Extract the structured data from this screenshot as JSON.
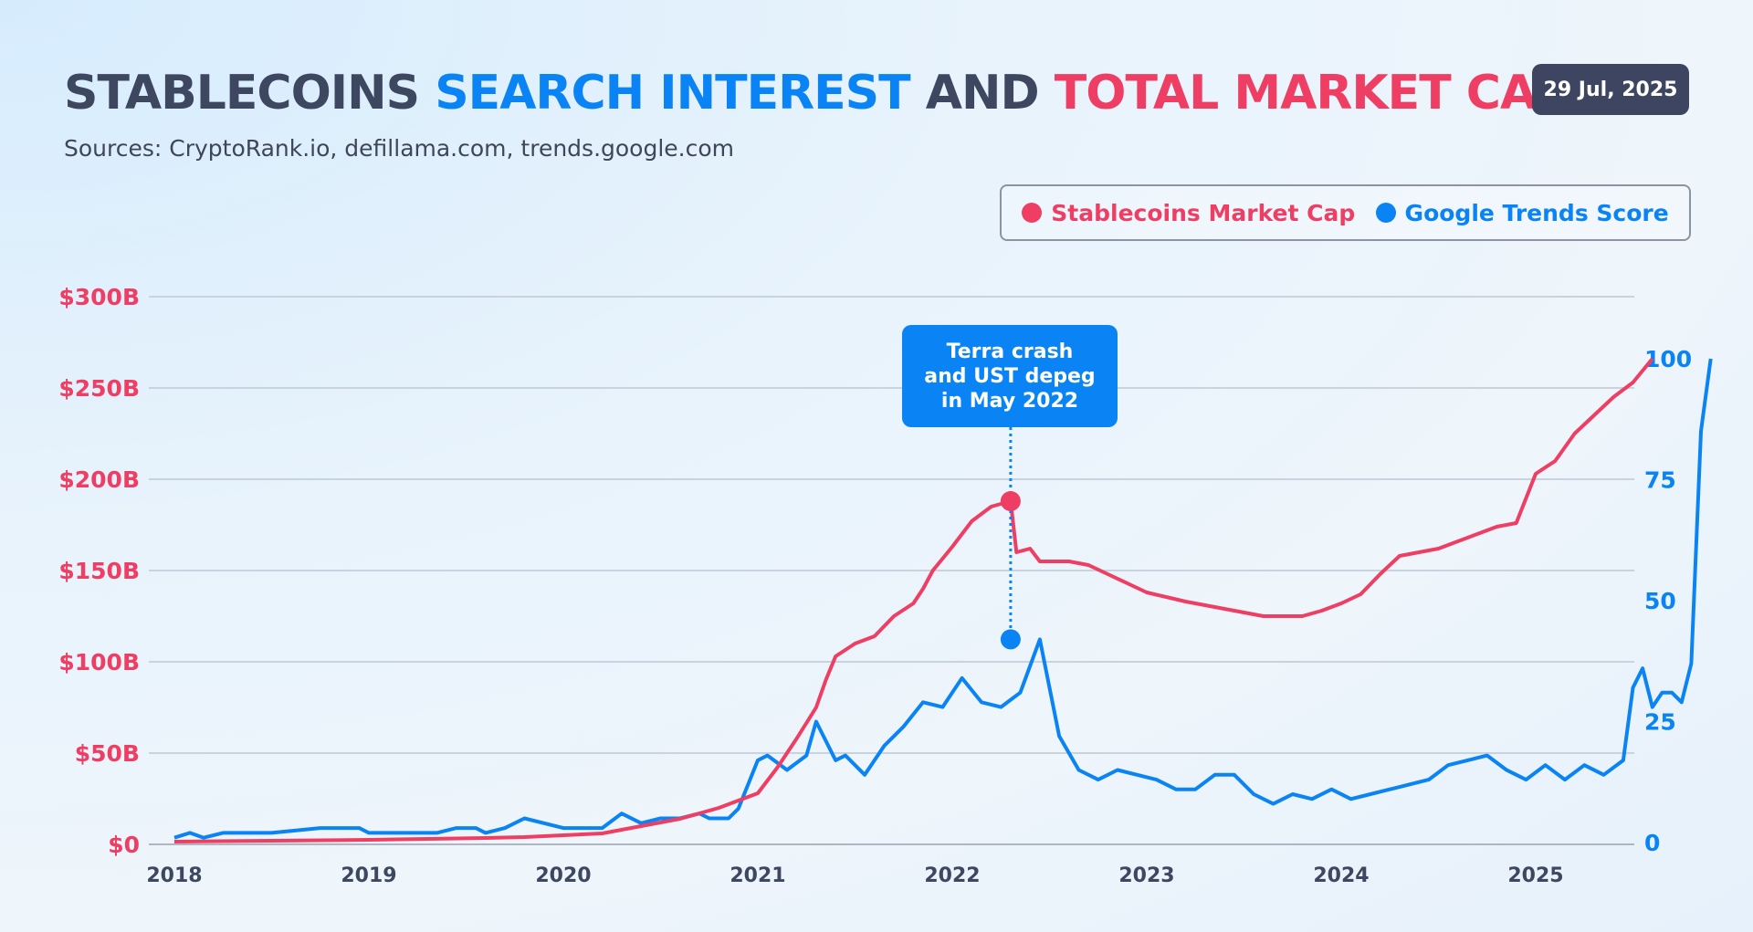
{
  "header": {
    "title_part1": "STABLECOINS",
    "title_part2": "SEARCH INTEREST",
    "title_part3": "AND",
    "title_part4": "TOTAL MARKET CAP",
    "subtitle": "Sources: CryptoRank.io, defillama.com, trends.google.com",
    "date": "29 Jul, 2025"
  },
  "colors": {
    "market_cap": "#ef3e63",
    "trends": "#0a84f5",
    "grid": "#c9d3df",
    "text": "#3d4760"
  },
  "chart_data": {
    "type": "line",
    "legend": [
      "Stablecoins Market Cap",
      "Google Trends Score"
    ],
    "legend_position": "top-right",
    "grid": true,
    "x_ticks": [
      "2018",
      "2019",
      "2020",
      "2021",
      "2022",
      "2023",
      "2024",
      "2025"
    ],
    "x_range": [
      2018.0,
      2025.6
    ],
    "y_left": {
      "ticks": [
        "$0",
        "$50B",
        "$100B",
        "$150B",
        "$200B",
        "$250B",
        "$300B"
      ],
      "range": [
        0,
        300
      ],
      "unit": "$B"
    },
    "y_right": {
      "ticks": [
        "0",
        "25",
        "50",
        "75",
        "100"
      ],
      "range": [
        0,
        113
      ]
    },
    "annotation": {
      "text": "Terra crash\nand UST depeg\nin May 2022",
      "x": 2022.3,
      "market_cap": 188,
      "trends": 42
    },
    "series": [
      {
        "name": "Stablecoins Market Cap",
        "axis": "left",
        "points": [
          [
            2018.0,
            1.5
          ],
          [
            2018.5,
            2
          ],
          [
            2019.0,
            2.5
          ],
          [
            2019.3,
            3
          ],
          [
            2019.6,
            3.5
          ],
          [
            2019.8,
            4
          ],
          [
            2020.0,
            5
          ],
          [
            2020.2,
            6
          ],
          [
            2020.3,
            8
          ],
          [
            2020.4,
            10
          ],
          [
            2020.5,
            12
          ],
          [
            2020.6,
            14
          ],
          [
            2020.7,
            17
          ],
          [
            2020.8,
            20
          ],
          [
            2020.9,
            24
          ],
          [
            2021.0,
            28
          ],
          [
            2021.1,
            42
          ],
          [
            2021.2,
            58
          ],
          [
            2021.3,
            75
          ],
          [
            2021.35,
            90
          ],
          [
            2021.4,
            103
          ],
          [
            2021.5,
            110
          ],
          [
            2021.6,
            114
          ],
          [
            2021.7,
            125
          ],
          [
            2021.8,
            132
          ],
          [
            2021.85,
            140
          ],
          [
            2021.9,
            150
          ],
          [
            2022.0,
            163
          ],
          [
            2022.1,
            177
          ],
          [
            2022.2,
            185
          ],
          [
            2022.3,
            188
          ],
          [
            2022.33,
            160
          ],
          [
            2022.4,
            162
          ],
          [
            2022.45,
            155
          ],
          [
            2022.6,
            155
          ],
          [
            2022.7,
            153
          ],
          [
            2022.8,
            148
          ],
          [
            2022.9,
            143
          ],
          [
            2023.0,
            138
          ],
          [
            2023.2,
            133
          ],
          [
            2023.4,
            129
          ],
          [
            2023.5,
            127
          ],
          [
            2023.6,
            125
          ],
          [
            2023.7,
            125
          ],
          [
            2023.8,
            125
          ],
          [
            2023.9,
            128
          ],
          [
            2024.0,
            132
          ],
          [
            2024.1,
            137
          ],
          [
            2024.2,
            148
          ],
          [
            2024.3,
            158
          ],
          [
            2024.5,
            162
          ],
          [
            2024.7,
            170
          ],
          [
            2024.8,
            174
          ],
          [
            2024.9,
            176
          ],
          [
            2025.0,
            203
          ],
          [
            2025.1,
            210
          ],
          [
            2025.2,
            225
          ],
          [
            2025.3,
            235
          ],
          [
            2025.4,
            245
          ],
          [
            2025.5,
            253
          ],
          [
            2025.6,
            266
          ]
        ]
      },
      {
        "name": "Google Trends Score",
        "axis": "right",
        "points": [
          [
            2018.0,
            1
          ],
          [
            2018.08,
            2
          ],
          [
            2018.15,
            1
          ],
          [
            2018.25,
            2
          ],
          [
            2018.5,
            2
          ],
          [
            2018.75,
            3
          ],
          [
            2018.95,
            3
          ],
          [
            2019.0,
            2
          ],
          [
            2019.2,
            2
          ],
          [
            2019.35,
            2
          ],
          [
            2019.45,
            3
          ],
          [
            2019.55,
            3
          ],
          [
            2019.6,
            2
          ],
          [
            2019.7,
            3
          ],
          [
            2019.8,
            5
          ],
          [
            2020.0,
            3
          ],
          [
            2020.2,
            3
          ],
          [
            2020.3,
            6
          ],
          [
            2020.4,
            4
          ],
          [
            2020.5,
            5
          ],
          [
            2020.6,
            5
          ],
          [
            2020.7,
            6
          ],
          [
            2020.75,
            5
          ],
          [
            2020.85,
            5
          ],
          [
            2020.9,
            7
          ],
          [
            2021.0,
            17
          ],
          [
            2021.05,
            18
          ],
          [
            2021.15,
            15
          ],
          [
            2021.25,
            18
          ],
          [
            2021.3,
            25
          ],
          [
            2021.4,
            17
          ],
          [
            2021.45,
            18
          ],
          [
            2021.55,
            14
          ],
          [
            2021.65,
            20
          ],
          [
            2021.75,
            24
          ],
          [
            2021.85,
            29
          ],
          [
            2021.95,
            28
          ],
          [
            2022.05,
            34
          ],
          [
            2022.15,
            29
          ],
          [
            2022.25,
            28
          ],
          [
            2022.35,
            31
          ],
          [
            2022.45,
            42
          ],
          [
            2022.55,
            22
          ],
          [
            2022.65,
            15
          ],
          [
            2022.75,
            13
          ],
          [
            2022.85,
            15
          ],
          [
            2022.95,
            14
          ],
          [
            2023.05,
            13
          ],
          [
            2023.15,
            11
          ],
          [
            2023.25,
            11
          ],
          [
            2023.35,
            14
          ],
          [
            2023.45,
            14
          ],
          [
            2023.55,
            10
          ],
          [
            2023.65,
            8
          ],
          [
            2023.75,
            10
          ],
          [
            2023.85,
            9
          ],
          [
            2023.95,
            11
          ],
          [
            2024.05,
            9
          ],
          [
            2024.15,
            10
          ],
          [
            2024.25,
            11
          ],
          [
            2024.35,
            12
          ],
          [
            2024.45,
            13
          ],
          [
            2024.55,
            16
          ],
          [
            2024.65,
            17
          ],
          [
            2024.75,
            18
          ],
          [
            2024.85,
            15
          ],
          [
            2024.95,
            13
          ],
          [
            2025.05,
            16
          ],
          [
            2025.15,
            13
          ],
          [
            2025.25,
            16
          ],
          [
            2025.35,
            14
          ],
          [
            2025.45,
            17
          ],
          [
            2025.5,
            32
          ],
          [
            2025.55,
            36
          ],
          [
            2025.6,
            28
          ],
          [
            2025.65,
            31
          ],
          [
            2025.7,
            31
          ],
          [
            2025.75,
            29
          ],
          [
            2025.8,
            37
          ],
          [
            2025.85,
            85
          ],
          [
            2025.9,
            100
          ]
        ]
      }
    ]
  }
}
